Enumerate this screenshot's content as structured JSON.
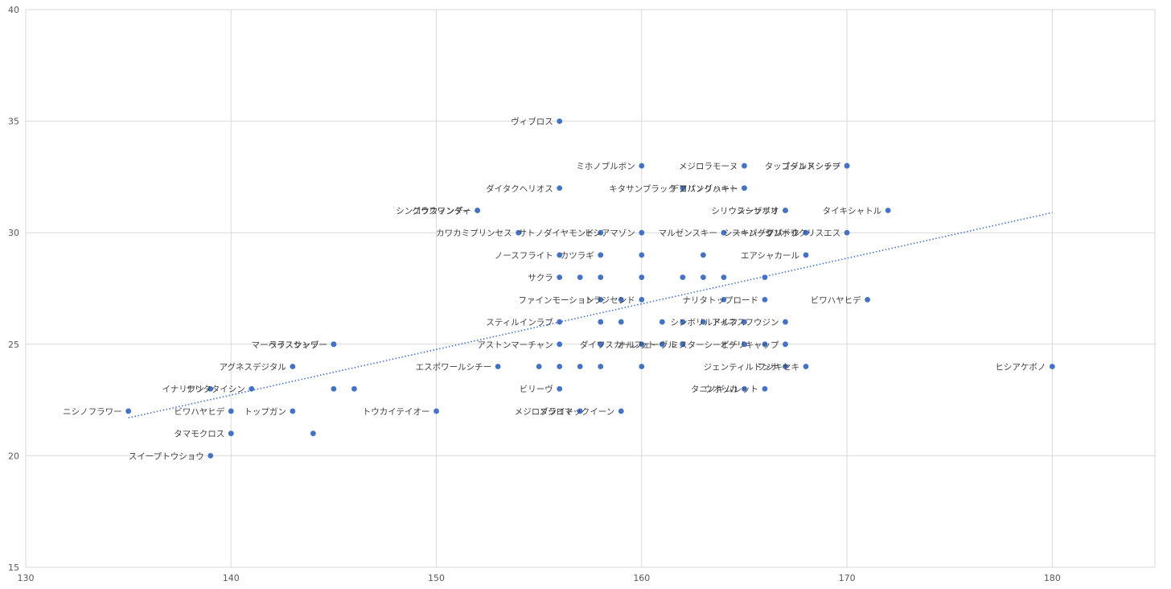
{
  "chart_data": {
    "type": "scatter",
    "title": "",
    "xlabel": "",
    "ylabel": "",
    "xlim": [
      130,
      185
    ],
    "ylim": [
      15,
      40
    ],
    "xticks": [
      130,
      140,
      150,
      160,
      170,
      180
    ],
    "yticks": [
      15,
      20,
      25,
      30,
      35,
      40
    ],
    "grid": true,
    "legend": "none",
    "colors": {
      "point": "#4472c4",
      "trend": "#4472c4",
      "grid": "#d9d9d9"
    },
    "trendline": {
      "type": "linear",
      "x_start": 135,
      "x_end": 180,
      "y_start": 21.7,
      "y_end": 30.9,
      "style": "dotted"
    },
    "points": [
      {
        "label": "ヴィブロス",
        "x": 156,
        "y": 35
      },
      {
        "label": "ゴールドシップ",
        "x": 170,
        "y": 33
      },
      {
        "label": "ミホノブルボン",
        "x": 160,
        "y": 33
      },
      {
        "label": "メジロラモーヌ",
        "x": 165,
        "y": 33
      },
      {
        "label": "タップダンスシチー",
        "x": 170,
        "y": 33
      },
      {
        "label": "ダイタクヘリオス",
        "x": 156,
        "y": 32
      },
      {
        "label": "キタサンブラック",
        "x": 162,
        "y": 32
      },
      {
        "label": "コパノリッキー",
        "x": 165,
        "y": 32
      },
      {
        "label": "デアリングハート",
        "x": 165,
        "y": 32
      },
      {
        "label": "グラスワンダー",
        "x": 152,
        "y": 31
      },
      {
        "label": "シンコウウィンディ",
        "x": 152,
        "y": 31
      },
      {
        "label": "シーザリオ",
        "x": 167,
        "y": 31
      },
      {
        "label": "シリウスシンボリ",
        "x": 167,
        "y": 31
      },
      {
        "label": "タイキシャトル",
        "x": 172,
        "y": 31
      },
      {
        "label": "カワカミプリンセス",
        "x": 154,
        "y": 30
      },
      {
        "label": "サトノダイヤモンド",
        "x": 158,
        "y": 30
      },
      {
        "label": "ヒシアマゾン",
        "x": 160,
        "y": 30
      },
      {
        "label": "マルゼンスキー",
        "x": 164,
        "y": 30
      },
      {
        "label": "シーキングザパール",
        "x": 168,
        "y": 30
      },
      {
        "label": "スーパークリーク",
        "x": 168,
        "y": 30
      },
      {
        "label": "シンボリクリスエス",
        "x": 170,
        "y": 30
      },
      {
        "label": "ノースフライト",
        "x": 156,
        "y": 29
      },
      {
        "label": "カツラギ",
        "x": 158,
        "y": 29
      },
      {
        "label": "",
        "x": 160,
        "y": 29
      },
      {
        "label": "",
        "x": 163,
        "y": 29
      },
      {
        "label": "エアシャカール",
        "x": 168,
        "y": 29
      },
      {
        "label": "サクラ",
        "x": 156,
        "y": 28
      },
      {
        "label": "",
        "x": 157,
        "y": 28
      },
      {
        "label": "",
        "x": 158,
        "y": 28
      },
      {
        "label": "",
        "x": 160,
        "y": 28
      },
      {
        "label": "",
        "x": 162,
        "y": 28
      },
      {
        "label": "",
        "x": 163,
        "y": 28
      },
      {
        "label": "",
        "x": 164,
        "y": 28
      },
      {
        "label": "",
        "x": 166,
        "y": 28
      },
      {
        "label": "ファインモーション",
        "x": 158,
        "y": 27
      },
      {
        "label": "",
        "x": 159,
        "y": 27
      },
      {
        "label": "トラジセンド",
        "x": 160,
        "y": 27
      },
      {
        "label": "",
        "x": 164,
        "y": 27
      },
      {
        "label": "ナリタトップロード",
        "x": 166,
        "y": 27
      },
      {
        "label": "ビワハヤヒデ",
        "x": 171,
        "y": 27
      },
      {
        "label": "シンボリルドルフ",
        "x": 165,
        "y": 26
      },
      {
        "label": "スティルインラブ",
        "x": 156,
        "y": 26
      },
      {
        "label": "",
        "x": 158,
        "y": 26
      },
      {
        "label": "",
        "x": 159,
        "y": 26
      },
      {
        "label": "",
        "x": 161,
        "y": 26
      },
      {
        "label": "",
        "x": 162,
        "y": 26
      },
      {
        "label": "",
        "x": 163,
        "y": 26
      },
      {
        "label": "アイネスフウジン",
        "x": 167,
        "y": 26
      },
      {
        "label": "ライスシャワー",
        "x": 145,
        "y": 25
      },
      {
        "label": "マーベラスサンデー",
        "x": 145,
        "y": 25
      },
      {
        "label": "アストンマーチャン",
        "x": 156,
        "y": 25
      },
      {
        "label": "",
        "x": 158,
        "y": 25
      },
      {
        "label": "",
        "x": 160,
        "y": 25
      },
      {
        "label": "ダイワスカーレット",
        "x": 161,
        "y": 25
      },
      {
        "label": "",
        "x": 162,
        "y": 25
      },
      {
        "label": "ミスターシービー",
        "x": 165,
        "y": 25
      },
      {
        "label": "",
        "x": 166,
        "y": 25
      },
      {
        "label": "オグリキャップ",
        "x": 167,
        "y": 25
      },
      {
        "label": "オルフェーヴル",
        "x": 162,
        "y": 25
      },
      {
        "label": "アグネスデジタル",
        "x": 143,
        "y": 24
      },
      {
        "label": "エスポワールシチー",
        "x": 153,
        "y": 24
      },
      {
        "label": "",
        "x": 155,
        "y": 24
      },
      {
        "label": "",
        "x": 156,
        "y": 24
      },
      {
        "label": "",
        "x": 157,
        "y": 24
      },
      {
        "label": "",
        "x": 158,
        "y": 24
      },
      {
        "label": "",
        "x": 160,
        "y": 24
      },
      {
        "label": "ジェンティルドンナ",
        "x": 167,
        "y": 24
      },
      {
        "label": "フジキセキ",
        "x": 168,
        "y": 24
      },
      {
        "label": "ヒシアケボノ",
        "x": 180,
        "y": 24
      },
      {
        "label": "イナリワン",
        "x": 139,
        "y": 23
      },
      {
        "label": "ナリタタイシン",
        "x": 141,
        "y": 23
      },
      {
        "label": "",
        "x": 145,
        "y": 23
      },
      {
        "label": "",
        "x": 146,
        "y": 23
      },
      {
        "label": "ビリーヴ",
        "x": 156,
        "y": 23
      },
      {
        "label": "ウオッカ",
        "x": 165,
        "y": 23
      },
      {
        "label": "タニノギムレット",
        "x": 166,
        "y": 23
      },
      {
        "label": "ニシノフラワー",
        "x": 135,
        "y": 22
      },
      {
        "label": "ビワハヤヒデ",
        "x": 140,
        "y": 22
      },
      {
        "label": "トップガン",
        "x": 143,
        "y": 22
      },
      {
        "label": "トウカイテイオー",
        "x": 150,
        "y": 22
      },
      {
        "label": "メジロブライト",
        "x": 157,
        "y": 22
      },
      {
        "label": "メジロマックイーン",
        "x": 159,
        "y": 22
      },
      {
        "label": "タマモクロス",
        "x": 140,
        "y": 21
      },
      {
        "label": "",
        "x": 144,
        "y": 21
      },
      {
        "label": "スイープトウショウ",
        "x": 139,
        "y": 20
      }
    ]
  }
}
